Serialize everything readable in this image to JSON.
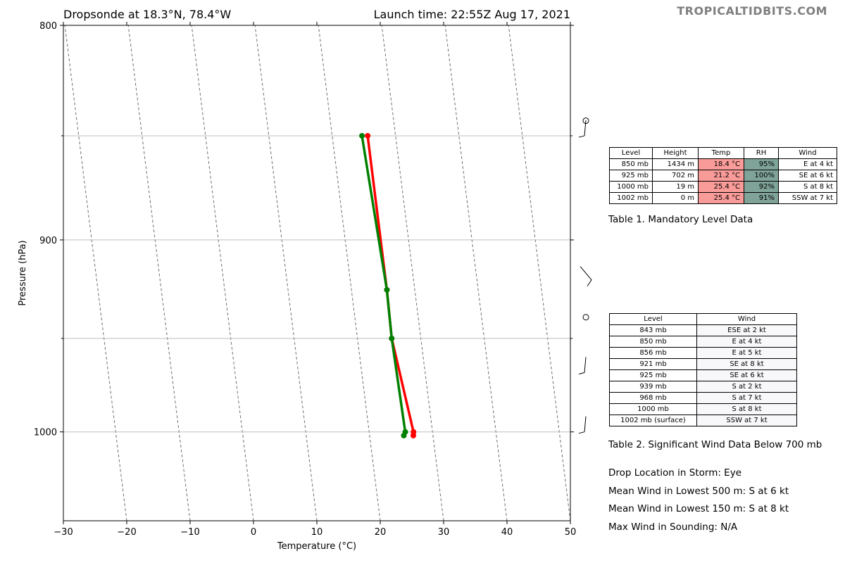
{
  "header": {
    "title_left": "Dropsonde at 18.3°N, 78.4°W",
    "title_right": "Launch time: 22:55Z Aug 17, 2021",
    "brand": "TROPICALTIDBITS.COM"
  },
  "chart_data": {
    "type": "line",
    "xlabel": "Temperature (°C)",
    "ylabel": "Pressure (hPa)",
    "xlim": [
      -30,
      50
    ],
    "ylim": [
      1050,
      800
    ],
    "y_scale": "log",
    "xticks": [
      -30,
      -20,
      -10,
      0,
      10,
      20,
      30,
      40,
      50
    ],
    "xtick_labels": [
      "−30",
      "−20",
      "−10",
      "0",
      "10",
      "20",
      "30",
      "40",
      "50"
    ],
    "yticks_labeled": [
      800,
      900,
      1000
    ],
    "ytick_labels": [
      "800",
      "900",
      "1000"
    ],
    "pressure_gridlines": [
      850,
      900,
      950,
      1000
    ],
    "skew": true,
    "series": [
      {
        "color": "#ff0000",
        "points": [
          [
            25.6,
            850
          ],
          [
            25.6,
            925
          ],
          [
            25.4,
            950
          ],
          [
            27.0,
            1000
          ],
          [
            26.9,
            1002
          ]
        ]
      },
      {
        "color": "#008000",
        "points": [
          [
            24.7,
            850
          ],
          [
            25.6,
            925
          ],
          [
            25.4,
            950
          ],
          [
            25.7,
            1000
          ],
          [
            25.4,
            1002
          ]
        ]
      }
    ],
    "wind_barbs": [
      {
        "level": 843,
        "type": "calm"
      },
      {
        "level": 850,
        "type": "barb"
      },
      {
        "level": 921,
        "type": "barb"
      },
      {
        "level": 939,
        "type": "calm"
      },
      {
        "level": 968,
        "type": "barb"
      },
      {
        "level": 1000,
        "type": "barb"
      }
    ]
  },
  "table1": {
    "headers": [
      "Level",
      "Height",
      "Temp",
      "RH",
      "Wind"
    ],
    "rows": [
      [
        "850 mb",
        "1434 m",
        "18.4 °C",
        "95%",
        "E at 4 kt"
      ],
      [
        "925 mb",
        "702 m",
        "21.2 °C",
        "100%",
        "SE at 6 kt"
      ],
      [
        "1000 mb",
        "19 m",
        "25.4 °C",
        "92%",
        "S at 8 kt"
      ],
      [
        "1002 mb",
        "0 m",
        "25.4 °C",
        "91%",
        "SSW at 7 kt"
      ]
    ],
    "caption": "Table 1. Mandatory Level Data"
  },
  "table2": {
    "headers": [
      "Level",
      "Wind"
    ],
    "rows": [
      [
        "843 mb",
        "ESE at 2 kt"
      ],
      [
        "850 mb",
        "E at 4 kt"
      ],
      [
        "856 mb",
        "E at 5 kt"
      ],
      [
        "921 mb",
        "SE at 8 kt"
      ],
      [
        "925 mb",
        "SE at 6 kt"
      ],
      [
        "939 mb",
        "S at 2 kt"
      ],
      [
        "968 mb",
        "S at 7 kt"
      ],
      [
        "1000 mb",
        "S at 8 kt"
      ],
      [
        "1002 mb (surface)",
        "SSW at 7 kt"
      ]
    ],
    "caption": "Table 2. Significant Wind Data Below 700 mb"
  },
  "info": {
    "drop_location": "Drop Location in Storm: Eye",
    "mean_500": "Mean Wind in Lowest 500 m:  S at 6 kt",
    "mean_150": "Mean Wind in Lowest 150 m:  S at 8 kt",
    "max_wind": "Max Wind in Sounding:  N/A"
  }
}
